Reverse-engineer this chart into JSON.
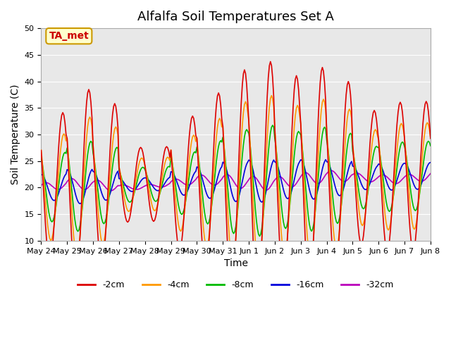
{
  "title": "Alfalfa Soil Temperatures Set A",
  "xlabel": "Time",
  "ylabel": "Soil Temperature (C)",
  "ylim": [
    10,
    50
  ],
  "n_days": 15,
  "x_tick_labels": [
    "May 24",
    "May 25",
    "May 26",
    "May 27",
    "May 28",
    "May 29",
    "May 30",
    "May 31",
    "Jun 1",
    "Jun 2",
    "Jun 3",
    "Jun 4",
    "Jun 5",
    "Jun 6",
    "Jun 7",
    "Jun 8"
  ],
  "colors": {
    "-2cm": "#dd0000",
    "-4cm": "#ff9900",
    "-8cm": "#00bb00",
    "-16cm": "#0000dd",
    "-32cm": "#bb00bb"
  },
  "annotation_label": "TA_met",
  "annotation_color": "#cc0000",
  "annotation_bg": "#ffffcc",
  "background_color": "#e8e8e8",
  "title_fontsize": 13,
  "axis_label_fontsize": 10,
  "tick_fontsize": 8,
  "day_amp_factors": [
    1.0,
    1.3,
    1.1,
    0.5,
    0.5,
    0.9,
    1.2,
    1.5,
    1.6,
    1.4,
    1.5,
    1.3,
    0.9,
    1.0,
    1.0,
    1.0
  ]
}
